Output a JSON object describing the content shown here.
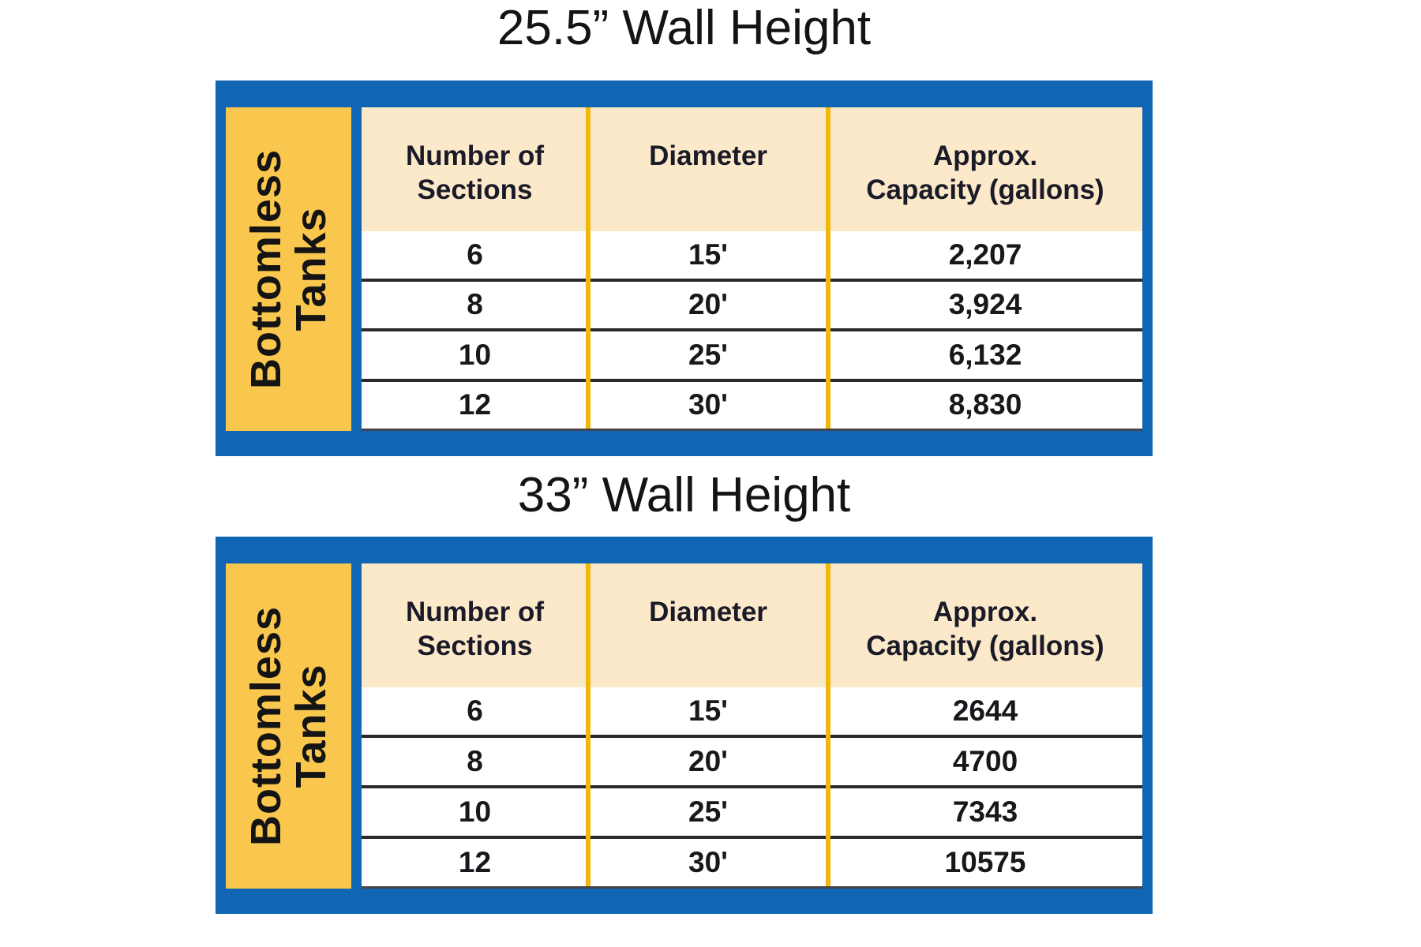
{
  "colors": {
    "frame_blue": "#1066B2",
    "sidebar_yellow": "#F9C64E",
    "column_separator_yellow": "#F2B70A",
    "header_cream": "#FCE9CA",
    "row_white": "#FFFFFF",
    "text_dark": "#17171C"
  },
  "tables": [
    {
      "title": "25.5” Wall Height",
      "sidebar": {
        "line1": "Bottomless",
        "line2": "Tanks"
      },
      "headers": [
        {
          "line1": "Number of",
          "line2": "Sections"
        },
        {
          "line1": "Diameter",
          "line2": ""
        },
        {
          "line1": "Approx.",
          "line2": "Capacity (gallons)"
        }
      ],
      "rows": [
        [
          "6",
          "15'",
          "2,207"
        ],
        [
          "8",
          "20'",
          "3,924"
        ],
        [
          "10",
          "25'",
          "6,132"
        ],
        [
          "12",
          "30'",
          "8,830"
        ]
      ]
    },
    {
      "title": "33” Wall Height",
      "sidebar": {
        "line1": "Bottomless",
        "line2": "Tanks"
      },
      "headers": [
        {
          "line1": "Number of",
          "line2": "Sections"
        },
        {
          "line1": "Diameter",
          "line2": ""
        },
        {
          "line1": "Approx.",
          "line2": "Capacity (gallons)"
        }
      ],
      "rows": [
        [
          "6",
          "15'",
          "2644"
        ],
        [
          "8",
          "20'",
          "4700"
        ],
        [
          "10",
          "25'",
          "7343"
        ],
        [
          "12",
          "30'",
          "10575"
        ]
      ]
    }
  ]
}
